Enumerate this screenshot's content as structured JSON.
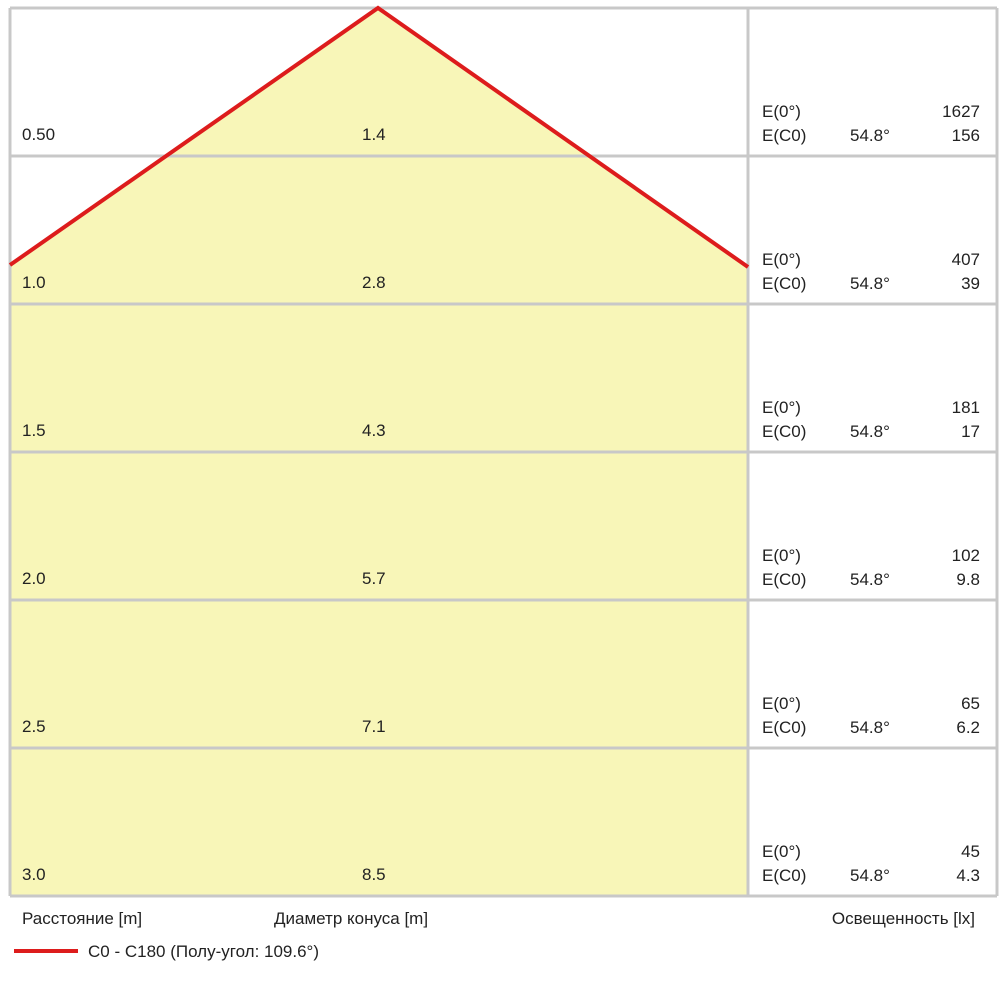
{
  "rows": [
    {
      "distance": "0.50",
      "diameter": "1.4",
      "e0_label": "E(0°)",
      "e0_value": "1627",
      "ec0_label": "E(C0)",
      "angle": "54.8°",
      "ec0_value": "156"
    },
    {
      "distance": "1.0",
      "diameter": "2.8",
      "e0_label": "E(0°)",
      "e0_value": "407",
      "ec0_label": "E(C0)",
      "angle": "54.8°",
      "ec0_value": "39"
    },
    {
      "distance": "1.5",
      "diameter": "4.3",
      "e0_label": "E(0°)",
      "e0_value": "181",
      "ec0_label": "E(C0)",
      "angle": "54.8°",
      "ec0_value": "17"
    },
    {
      "distance": "2.0",
      "diameter": "5.7",
      "e0_label": "E(0°)",
      "e0_value": "102",
      "ec0_label": "E(C0)",
      "angle": "54.8°",
      "ec0_value": "9.8"
    },
    {
      "distance": "2.5",
      "diameter": "7.1",
      "e0_label": "E(0°)",
      "e0_value": "65",
      "ec0_label": "E(C0)",
      "angle": "54.8°",
      "ec0_value": "6.2"
    },
    {
      "distance": "3.0",
      "diameter": "8.5",
      "e0_label": "E(0°)",
      "e0_value": "45",
      "ec0_label": "E(C0)",
      "angle": "54.8°",
      "ec0_value": "4.3"
    }
  ],
  "footer": {
    "distance_label": "Расстояние [m]",
    "diameter_label": "Диаметр конуса [m]",
    "illuminance_label": "Освещенность [lx]"
  },
  "legend": {
    "label": "C0 - C180 (Полу-угол: 109.6°)"
  }
}
